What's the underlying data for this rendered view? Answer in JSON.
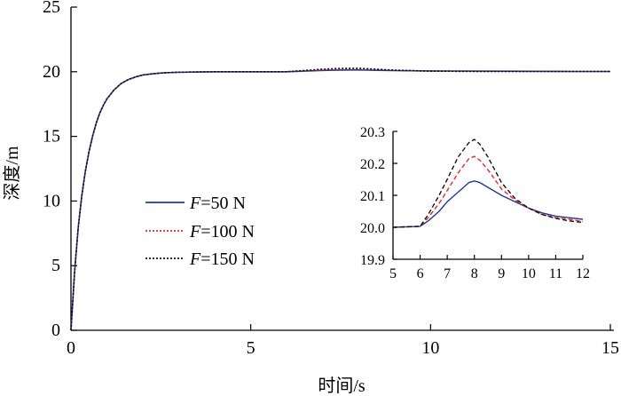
{
  "chart_data": [
    {
      "type": "line",
      "role": "main",
      "title": "",
      "xlabel": "时间/s",
      "ylabel": "深度/m",
      "xlim": [
        0,
        15
      ],
      "ylim": [
        0,
        25
      ],
      "xticks": [
        0,
        5,
        10,
        15
      ],
      "yticks": [
        0,
        5,
        10,
        15,
        20,
        25
      ],
      "xtick_labels": [
        "0",
        "5",
        "10",
        "15"
      ],
      "ytick_labels": [
        "0",
        "5",
        "10",
        "15",
        "20",
        "25"
      ],
      "grid": false,
      "legend_position": "center-left",
      "series": [
        {
          "name": "F=50 N",
          "legend_var": "F",
          "legend_value": "=50 N",
          "color": "#1f3a93",
          "style": "solid",
          "x": [
            0,
            0.1,
            0.2,
            0.3,
            0.4,
            0.5,
            0.6,
            0.7,
            0.8,
            0.9,
            1.0,
            1.2,
            1.4,
            1.6,
            1.8,
            2.0,
            2.3,
            2.6,
            3.0,
            3.5,
            4.0,
            5.0,
            6.0,
            7.0,
            7.5,
            8.0,
            8.5,
            9.0,
            10.0,
            11.0,
            12.0,
            13.0,
            14.0,
            15.0
          ],
          "y": [
            0,
            4.5,
            7.9,
            10.4,
            12.3,
            13.8,
            15.0,
            16.0,
            16.8,
            17.4,
            17.9,
            18.6,
            19.1,
            19.4,
            19.6,
            19.75,
            19.85,
            19.92,
            19.96,
            19.98,
            20.0,
            20.0,
            20.0,
            20.1,
            20.13,
            20.14,
            20.11,
            20.09,
            20.06,
            20.05,
            20.04,
            20.03,
            20.02,
            20.02
          ]
        },
        {
          "name": "F=100 N",
          "legend_var": "F",
          "legend_value": "=100 N",
          "color": "#e8262b",
          "style": "dotted",
          "x": [
            0,
            0.1,
            0.2,
            0.3,
            0.4,
            0.5,
            0.6,
            0.7,
            0.8,
            0.9,
            1.0,
            1.2,
            1.4,
            1.6,
            1.8,
            2.0,
            2.3,
            2.6,
            3.0,
            3.5,
            4.0,
            5.0,
            6.0,
            7.0,
            7.5,
            8.0,
            8.5,
            9.0,
            10.0,
            11.0,
            12.0,
            13.0,
            14.0,
            15.0
          ],
          "y": [
            0,
            4.5,
            7.9,
            10.4,
            12.3,
            13.8,
            15.0,
            16.0,
            16.8,
            17.4,
            17.9,
            18.6,
            19.1,
            19.4,
            19.6,
            19.75,
            19.85,
            19.92,
            19.96,
            19.98,
            20.0,
            20.0,
            20.0,
            20.14,
            20.2,
            20.22,
            20.17,
            20.1,
            20.05,
            20.03,
            20.02,
            20.02,
            20.02,
            20.02
          ]
        },
        {
          "name": "F=150 N",
          "legend_var": "F",
          "legend_value": "=150 N",
          "color": "#111111",
          "style": "dotted",
          "x": [
            0,
            0.1,
            0.2,
            0.3,
            0.4,
            0.5,
            0.6,
            0.7,
            0.8,
            0.9,
            1.0,
            1.2,
            1.4,
            1.6,
            1.8,
            2.0,
            2.3,
            2.6,
            3.0,
            3.5,
            4.0,
            5.0,
            6.0,
            7.0,
            7.5,
            8.0,
            8.5,
            9.0,
            10.0,
            11.0,
            12.0,
            13.0,
            14.0,
            15.0
          ],
          "y": [
            0,
            4.5,
            7.9,
            10.4,
            12.3,
            13.8,
            15.0,
            16.0,
            16.8,
            17.4,
            17.9,
            18.6,
            19.1,
            19.4,
            19.6,
            19.75,
            19.85,
            19.92,
            19.96,
            19.98,
            20.0,
            20.0,
            20.0,
            20.2,
            20.26,
            20.27,
            20.2,
            20.12,
            20.05,
            20.03,
            20.02,
            20.02,
            20.02,
            20.02
          ]
        }
      ]
    },
    {
      "type": "line",
      "role": "inset",
      "title": "",
      "xlabel": "",
      "ylabel": "",
      "xlim": [
        5,
        12
      ],
      "ylim": [
        19.9,
        20.3
      ],
      "xticks": [
        5,
        6,
        7,
        8,
        9,
        10,
        11,
        12
      ],
      "yticks": [
        19.9,
        20.0,
        20.1,
        20.2,
        20.3
      ],
      "xtick_labels": [
        "5",
        "6",
        "7",
        "8",
        "9",
        "10",
        "11",
        "12"
      ],
      "ytick_labels": [
        "19.9",
        "20.0",
        "20.1",
        "20.2",
        "20.3"
      ],
      "grid": false,
      "series": [
        {
          "name": "F=50 N",
          "color": "#1f3a93",
          "style": "solid",
          "x": [
            5.0,
            6.0,
            6.3,
            6.7,
            7.0,
            7.4,
            7.8,
            8.0,
            8.2,
            8.5,
            9.0,
            9.5,
            10.0,
            10.5,
            11.0,
            11.5,
            12.0
          ],
          "y": [
            20.0,
            20.003,
            20.02,
            20.05,
            20.08,
            20.11,
            20.14,
            20.145,
            20.14,
            20.125,
            20.1,
            20.08,
            20.06,
            20.045,
            20.035,
            20.03,
            20.025
          ]
        },
        {
          "name": "F=100 N",
          "color": "#e8262b",
          "style": "dashed",
          "x": [
            5.0,
            6.0,
            6.3,
            6.7,
            7.0,
            7.4,
            7.8,
            8.0,
            8.2,
            8.5,
            9.0,
            9.5,
            10.0,
            10.5,
            11.0,
            11.5,
            12.0
          ],
          "y": [
            20.0,
            20.003,
            20.03,
            20.075,
            20.115,
            20.17,
            20.215,
            20.222,
            20.21,
            20.18,
            20.12,
            20.085,
            20.06,
            20.04,
            20.03,
            20.025,
            20.018
          ]
        },
        {
          "name": "F=150 N",
          "color": "#111111",
          "style": "dashed",
          "x": [
            5.0,
            6.0,
            6.3,
            6.7,
            7.0,
            7.4,
            7.8,
            8.0,
            8.2,
            8.5,
            9.0,
            9.5,
            10.0,
            10.5,
            11.0,
            11.5,
            12.0
          ],
          "y": [
            20.0,
            20.003,
            20.04,
            20.1,
            20.15,
            20.22,
            20.265,
            20.275,
            20.26,
            20.22,
            20.14,
            20.09,
            20.06,
            20.04,
            20.028,
            20.02,
            20.015
          ]
        }
      ]
    }
  ]
}
